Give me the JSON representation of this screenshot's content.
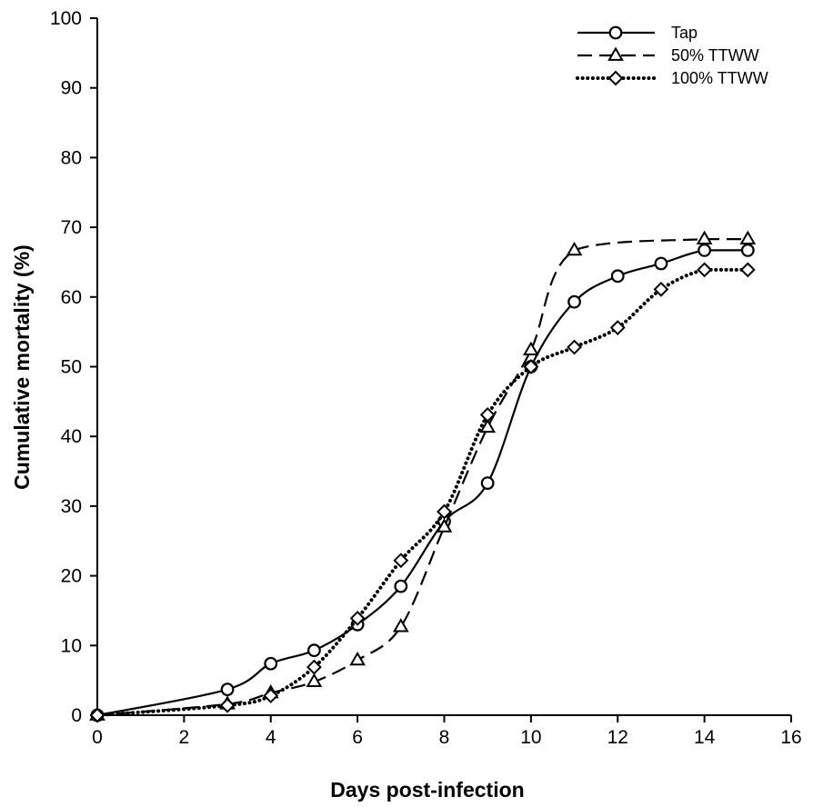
{
  "chart_data": {
    "type": "line",
    "title": "",
    "xlabel": "Days post-infection",
    "ylabel": "Cumulative mortality (%)",
    "xlim": [
      0,
      16
    ],
    "ylim": [
      0,
      100
    ],
    "xticks": [
      0,
      2,
      4,
      6,
      8,
      10,
      12,
      14,
      16
    ],
    "yticks": [
      0,
      10,
      20,
      30,
      40,
      50,
      60,
      70,
      80,
      90,
      100
    ],
    "grid": false,
    "legend_position": "top-right",
    "series": [
      {
        "name": "Tap",
        "marker": "circle",
        "line_style": "solid",
        "points": [
          [
            0,
            0
          ],
          [
            3,
            3.7
          ],
          [
            4,
            7.4
          ],
          [
            5,
            9.3
          ],
          [
            6,
            13
          ],
          [
            7,
            18.5
          ],
          [
            8,
            27.8
          ],
          [
            9,
            33.3
          ],
          [
            10,
            50
          ],
          [
            11,
            59.3
          ],
          [
            12,
            63
          ],
          [
            13,
            64.8
          ],
          [
            14,
            66.7
          ],
          [
            15,
            66.7
          ]
        ]
      },
      {
        "name": "50% TTWW",
        "marker": "triangle",
        "line_style": "dashed",
        "points": [
          [
            0,
            0
          ],
          [
            3,
            1.6
          ],
          [
            4,
            3.2
          ],
          [
            5,
            4.8
          ],
          [
            6,
            7.9
          ],
          [
            7,
            12.7
          ],
          [
            8,
            27
          ],
          [
            9,
            41.3
          ],
          [
            10,
            52.4
          ],
          [
            11,
            66.7
          ],
          [
            14,
            68.3
          ],
          [
            15,
            68.3
          ]
        ]
      },
      {
        "name": "100% TTWW",
        "marker": "diamond",
        "line_style": "dotted",
        "points": [
          [
            0,
            0
          ],
          [
            3,
            1.4
          ],
          [
            4,
            2.8
          ],
          [
            5,
            6.9
          ],
          [
            6,
            13.9
          ],
          [
            7,
            22.2
          ],
          [
            8,
            29.2
          ],
          [
            9,
            43.1
          ],
          [
            10,
            50
          ],
          [
            11,
            52.8
          ],
          [
            12,
            55.6
          ],
          [
            13,
            61.1
          ],
          [
            14,
            63.9
          ],
          [
            15,
            63.9
          ]
        ]
      }
    ]
  }
}
